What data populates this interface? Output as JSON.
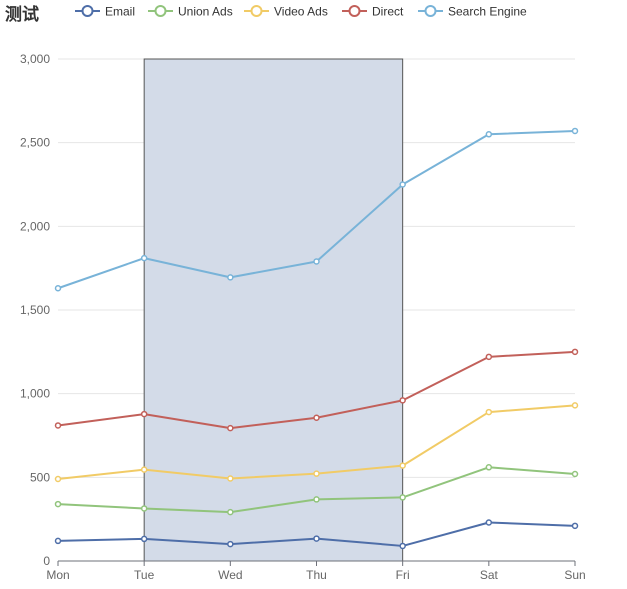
{
  "chart_data": {
    "type": "line",
    "title": "测试",
    "categories": [
      "Mon",
      "Tue",
      "Wed",
      "Thu",
      "Fri",
      "Sat",
      "Sun"
    ],
    "ylim": [
      0,
      3000
    ],
    "yticks": [
      0,
      500,
      1000,
      1500,
      2000,
      2500,
      3000
    ],
    "ytick_labels": [
      "0",
      "500",
      "1,000",
      "1,500",
      "2,000",
      "2,500",
      "3,000"
    ],
    "grid": true,
    "legend_position": "top",
    "series": [
      {
        "name": "Email",
        "color": "#4e6ea8",
        "values": [
          120,
          132,
          101,
          134,
          90,
          230,
          210
        ]
      },
      {
        "name": "Union Ads",
        "color": "#91c47c",
        "values": [
          340,
          314,
          292,
          368,
          380,
          560,
          520
        ]
      },
      {
        "name": "Video Ads",
        "color": "#f1cb66",
        "values": [
          490,
          546,
          493,
          522,
          570,
          890,
          930
        ]
      },
      {
        "name": "Direct",
        "color": "#c2605a",
        "values": [
          810,
          878,
          794,
          856,
          960,
          1220,
          1250
        ]
      },
      {
        "name": "Search Engine",
        "color": "#78b3d8",
        "values": [
          1630,
          1810,
          1695,
          1790,
          2250,
          2550,
          2570
        ]
      }
    ],
    "selection": {
      "x_from": "Tue",
      "x_to": "Fri",
      "fill": "#d3dbe8",
      "stroke": "#555555"
    }
  }
}
